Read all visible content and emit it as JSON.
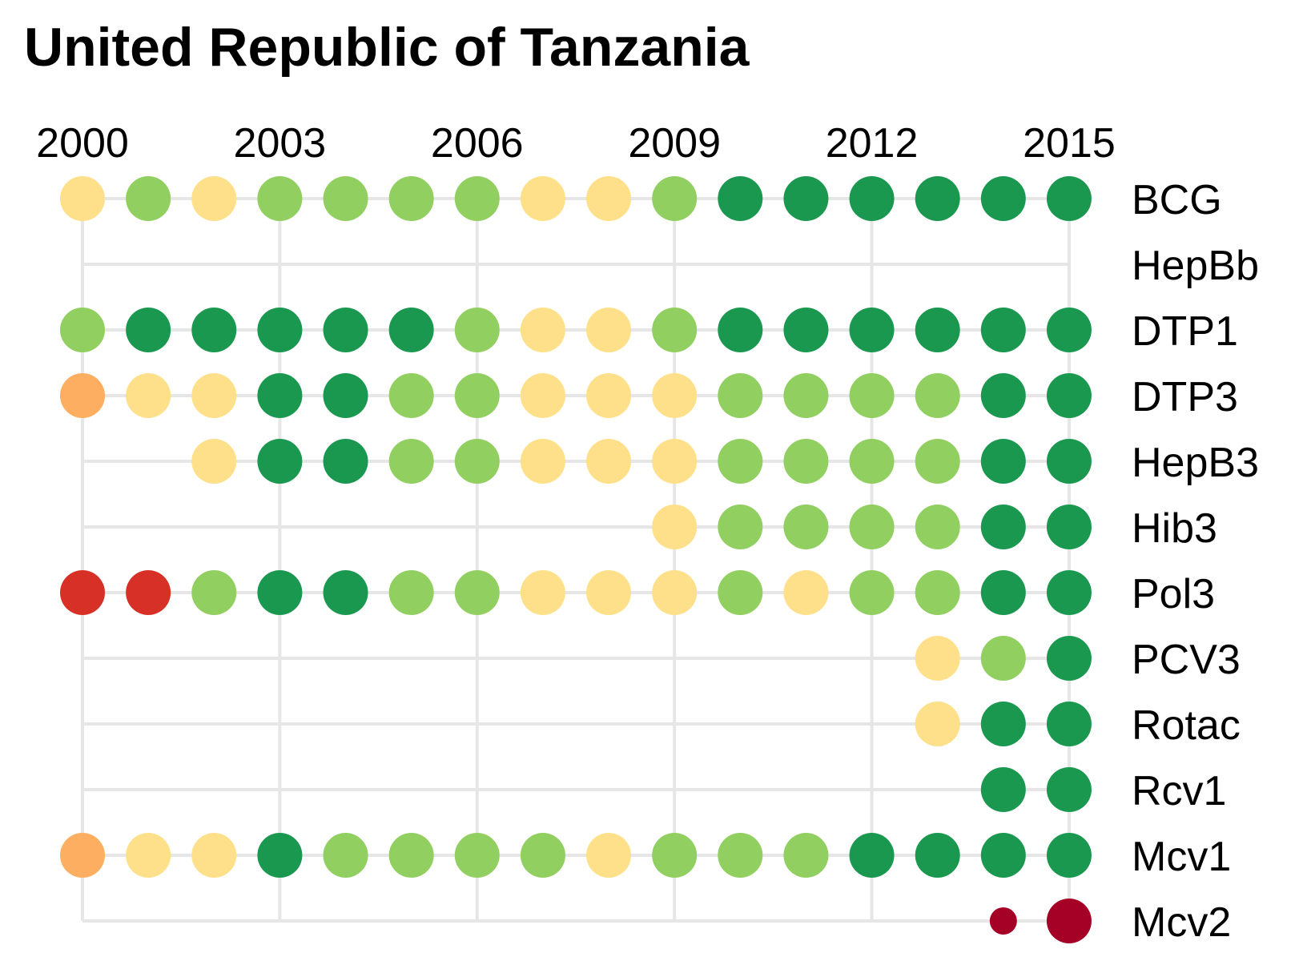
{
  "chart_data": {
    "type": "scatter",
    "title": "United Republic of Tanzania",
    "xlabel": "",
    "ylabel": "",
    "x_ticks": [
      2000,
      2003,
      2006,
      2009,
      2012,
      2015
    ],
    "xlim": [
      2000,
      2015
    ],
    "grid": true,
    "legend": "none",
    "level_colors": {
      "1": "#a50026",
      "2": "#d73027",
      "3": "#fdae61",
      "4": "#fee08b",
      "5": "#91cf60",
      "6": "#1a9850"
    },
    "years": [
      2000,
      2001,
      2002,
      2003,
      2004,
      2005,
      2006,
      2007,
      2008,
      2009,
      2010,
      2011,
      2012,
      2013,
      2014,
      2015
    ],
    "rows": [
      {
        "name": "BCG",
        "levels": [
          4,
          5,
          4,
          5,
          5,
          5,
          5,
          4,
          4,
          5,
          6,
          6,
          6,
          6,
          6,
          6
        ]
      },
      {
        "name": "HepBb",
        "levels": [
          null,
          null,
          null,
          null,
          null,
          null,
          null,
          null,
          null,
          null,
          null,
          null,
          null,
          null,
          null,
          null
        ]
      },
      {
        "name": "DTP1",
        "levels": [
          5,
          6,
          6,
          6,
          6,
          6,
          5,
          4,
          4,
          5,
          6,
          6,
          6,
          6,
          6,
          6
        ]
      },
      {
        "name": "DTP3",
        "levels": [
          3,
          4,
          4,
          6,
          6,
          5,
          5,
          4,
          4,
          4,
          5,
          5,
          5,
          5,
          6,
          6
        ]
      },
      {
        "name": "HepB3",
        "levels": [
          null,
          null,
          4,
          6,
          6,
          5,
          5,
          4,
          4,
          4,
          5,
          5,
          5,
          5,
          6,
          6
        ]
      },
      {
        "name": "Hib3",
        "levels": [
          null,
          null,
          null,
          null,
          null,
          null,
          null,
          null,
          null,
          4,
          5,
          5,
          5,
          5,
          6,
          6
        ]
      },
      {
        "name": "Pol3",
        "levels": [
          2,
          2,
          5,
          6,
          6,
          5,
          5,
          4,
          4,
          4,
          5,
          4,
          5,
          5,
          6,
          6
        ]
      },
      {
        "name": "PCV3",
        "levels": [
          null,
          null,
          null,
          null,
          null,
          null,
          null,
          null,
          null,
          null,
          null,
          null,
          null,
          4,
          5,
          6
        ]
      },
      {
        "name": "Rotac",
        "levels": [
          null,
          null,
          null,
          null,
          null,
          null,
          null,
          null,
          null,
          null,
          null,
          null,
          null,
          4,
          6,
          6
        ]
      },
      {
        "name": "Rcv1",
        "levels": [
          null,
          null,
          null,
          null,
          null,
          null,
          null,
          null,
          null,
          null,
          null,
          null,
          null,
          null,
          6,
          6
        ]
      },
      {
        "name": "Mcv1",
        "levels": [
          3,
          4,
          4,
          6,
          5,
          5,
          5,
          5,
          4,
          5,
          5,
          5,
          6,
          6,
          6,
          6
        ]
      },
      {
        "name": "Mcv2",
        "levels": [
          null,
          null,
          null,
          null,
          null,
          null,
          null,
          null,
          null,
          null,
          null,
          null,
          null,
          null,
          1,
          1
        ],
        "small": [
          false,
          false,
          false,
          false,
          false,
          false,
          false,
          false,
          false,
          false,
          false,
          false,
          false,
          false,
          true,
          false
        ]
      }
    ]
  }
}
